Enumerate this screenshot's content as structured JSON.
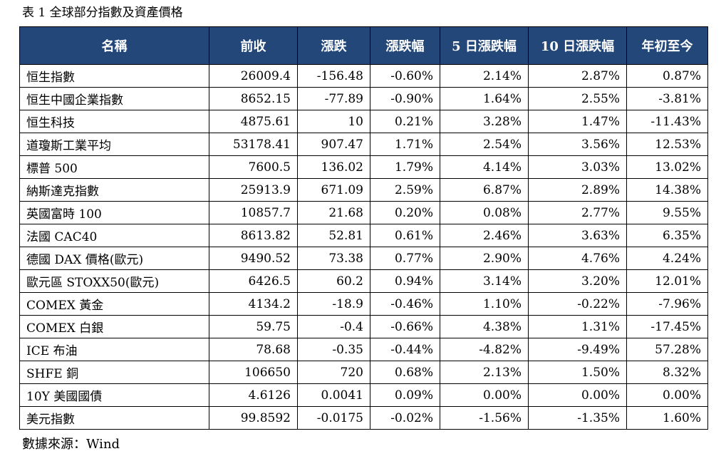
{
  "caption": "表 1 全球部分指數及資產價格",
  "source": "數據來源：Wind",
  "table": {
    "headers": [
      "名稱",
      "前收",
      "漲跌",
      "漲跌幅",
      "5 日漲跌幅",
      "10 日漲跌幅",
      "年初至今"
    ],
    "rows": [
      [
        "恒生指數",
        "26009.4",
        "-156.48",
        "-0.60%",
        "2.14%",
        "2.87%",
        "0.87%"
      ],
      [
        "恒生中國企業指數",
        "8652.15",
        "-77.89",
        "-0.90%",
        "1.64%",
        "2.55%",
        "-3.81%"
      ],
      [
        "恒生科技",
        "4875.61",
        "10",
        "0.21%",
        "3.28%",
        "1.47%",
        "-11.43%"
      ],
      [
        "道瓊斯工業平均",
        "53178.41",
        "907.47",
        "1.71%",
        "2.54%",
        "3.56%",
        "12.53%"
      ],
      [
        "標普 500",
        "7600.5",
        "136.02",
        "1.79%",
        "4.14%",
        "3.03%",
        "13.02%"
      ],
      [
        "納斯達克指數",
        "25913.9",
        "671.09",
        "2.59%",
        "6.87%",
        "2.89%",
        "14.38%"
      ],
      [
        "英國富時 100",
        "10857.7",
        "21.68",
        "0.20%",
        "0.08%",
        "2.77%",
        "9.55%"
      ],
      [
        "法國 CAC40",
        "8613.82",
        "52.81",
        "0.61%",
        "2.46%",
        "3.63%",
        "6.35%"
      ],
      [
        "德國 DAX 價格(歐元)",
        "9490.52",
        "73.38",
        "0.77%",
        "2.90%",
        "4.76%",
        "4.24%"
      ],
      [
        "歐元區 STOXX50(歐元)",
        "6426.5",
        "60.2",
        "0.94%",
        "3.14%",
        "3.20%",
        "12.01%"
      ],
      [
        "COMEX 黃金",
        "4134.2",
        "-18.9",
        "-0.46%",
        "1.10%",
        "-0.22%",
        "-7.96%"
      ],
      [
        "COMEX 白銀",
        "59.75",
        "-0.4",
        "-0.66%",
        "4.38%",
        "1.31%",
        "-17.45%"
      ],
      [
        "ICE 布油",
        "78.68",
        "-0.35",
        "-0.44%",
        "-4.82%",
        "-9.49%",
        "57.28%"
      ],
      [
        "SHFE 銅",
        "106650",
        "720",
        "0.68%",
        "2.13%",
        "1.50%",
        "8.32%"
      ],
      [
        "10Y 美國國債",
        "4.6126",
        "0.0041",
        "0.09%",
        "0.00%",
        "0.00%",
        "0.00%"
      ],
      [
        "美元指數",
        "99.8592",
        "-0.0175",
        "-0.02%",
        "-1.56%",
        "-1.35%",
        "1.60%"
      ]
    ]
  }
}
